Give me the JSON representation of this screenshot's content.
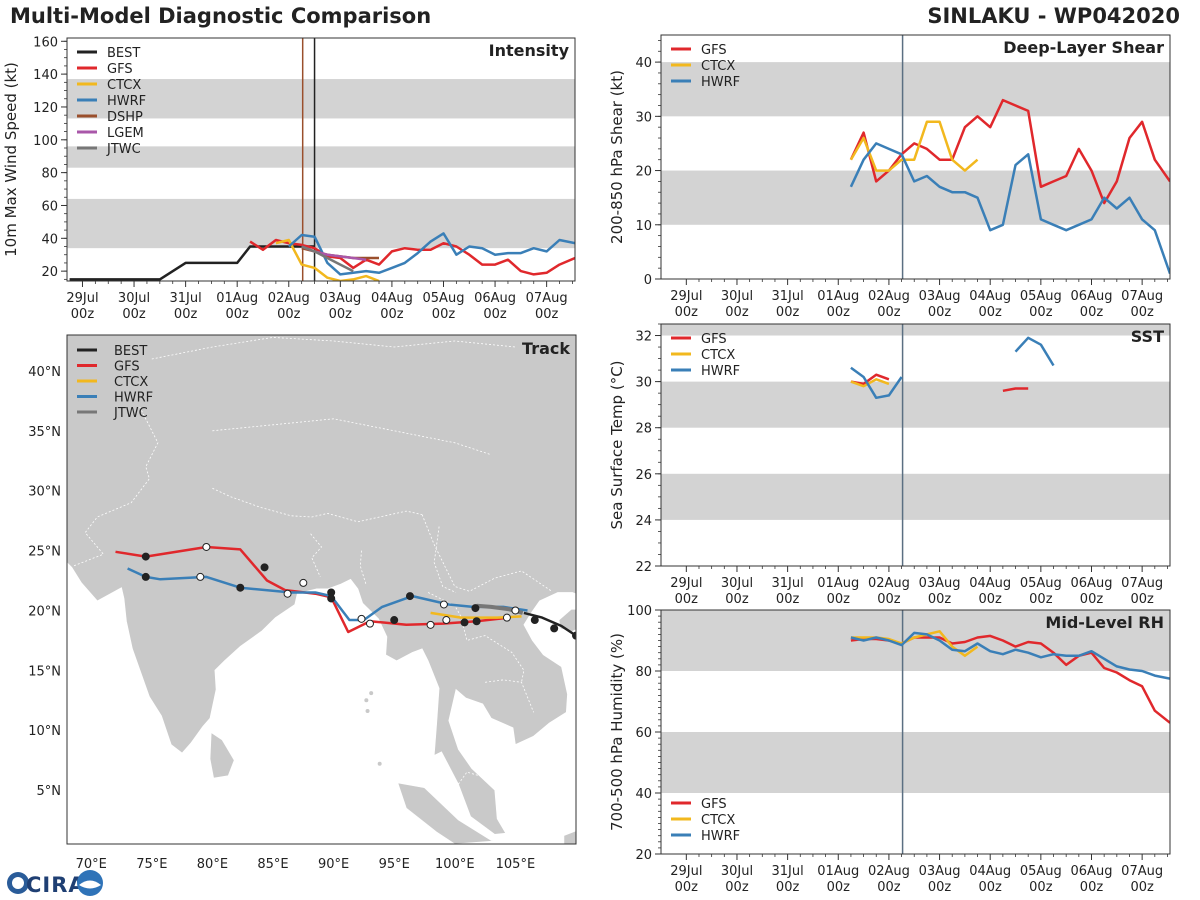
{
  "header": {
    "title": "Multi-Model Diagnostic Comparison",
    "storm": "SINLAKU - WP042020"
  },
  "logo": {
    "text": "CIRA"
  },
  "colors": {
    "BEST": "#222222",
    "GFS": "#e0282c",
    "CTCX": "#f2b81e",
    "HWRF": "#3a7fb7",
    "DSHP": "#9a4f2c",
    "LGEM": "#a957a9",
    "JTWC": "#777777",
    "band": "#d3d3d3",
    "land": "#c9c9c9",
    "vline": "#5b6f82"
  },
  "time_ticks": [
    "29Jul\n00z",
    "30Jul\n00z",
    "31Jul\n00z",
    "01Aug\n00z",
    "02Aug\n00z",
    "03Aug\n00z",
    "04Aug\n00z",
    "05Aug\n00z",
    "06Aug\n00z",
    "07Aug\n00z"
  ],
  "chart_data": [
    {
      "id": "intensity",
      "type": "line",
      "title": "Intensity",
      "ylabel": "10m Max Wind Speed (kt)",
      "xlim": [
        -0.3,
        9.55
      ],
      "ylim": [
        14,
        162
      ],
      "yticks": [
        20,
        40,
        60,
        80,
        100,
        120,
        140,
        160
      ],
      "bands": [
        [
          34,
          64
        ],
        [
          83,
          96
        ],
        [
          113,
          137
        ]
      ],
      "vlines": [
        {
          "x": 4.27,
          "color": "#9a4f2c"
        },
        {
          "x": 4.5,
          "color": "#222222"
        }
      ],
      "legend": [
        "BEST",
        "GFS",
        "CTCX",
        "HWRF",
        "DSHP",
        "LGEM",
        "JTWC"
      ],
      "series": [
        {
          "name": "BEST",
          "x": [
            -0.25,
            0,
            0.5,
            1,
            1.5,
            2,
            2.5,
            3,
            3.25,
            3.5,
            4,
            4.25,
            4.5
          ],
          "y": [
            15,
            15,
            15,
            15,
            15,
            25,
            25,
            25,
            35,
            35,
            35,
            35,
            35
          ]
        },
        {
          "name": "GFS",
          "x": [
            3.25,
            3.5,
            3.75,
            4,
            4.25,
            4.5,
            4.75,
            5,
            5.25,
            5.5,
            5.75,
            6,
            6.25,
            6.5,
            6.75,
            7,
            7.25,
            7.5,
            7.75,
            8,
            8.25,
            8.5,
            8.75,
            9,
            9.25,
            9.55
          ],
          "y": [
            38,
            33,
            39,
            37,
            36,
            34,
            29,
            28,
            22,
            27,
            24,
            32,
            34,
            33,
            33,
            37,
            35,
            30,
            24,
            24,
            27,
            20,
            18,
            19,
            24,
            28
          ]
        },
        {
          "name": "CTCX",
          "x": [
            3.75,
            4,
            4.25,
            4.5,
            4.75,
            5,
            5.25,
            5.5,
            5.75
          ],
          "y": [
            37,
            39,
            24,
            22,
            16,
            14,
            15,
            17,
            14
          ]
        },
        {
          "name": "HWRF",
          "x": [
            4,
            4.25,
            4.5,
            4.75,
            5,
            5.25,
            5.5,
            5.75,
            6,
            6.25,
            6.5,
            6.75,
            7,
            7.25,
            7.5,
            7.75,
            8,
            8.25,
            8.5,
            8.75,
            9,
            9.25,
            9.55
          ],
          "y": [
            35,
            42,
            41,
            25,
            18,
            19,
            20,
            19,
            22,
            25,
            31,
            38,
            43,
            30,
            35,
            34,
            30,
            31,
            31,
            34,
            32,
            39,
            37
          ]
        },
        {
          "name": "DSHP",
          "x": [
            4.25,
            4.5,
            4.75,
            5,
            5.25,
            5.5,
            5.75
          ],
          "y": [
            34,
            32,
            30,
            29,
            28,
            28,
            28
          ]
        },
        {
          "name": "LGEM",
          "x": [
            4.25,
            4.5,
            4.75,
            5,
            5.25,
            5.5
          ],
          "y": [
            35,
            32,
            30,
            29,
            28,
            27
          ]
        },
        {
          "name": "JTWC",
          "x": [
            4.25,
            4.5,
            4.75,
            5,
            5.25
          ],
          "y": [
            35,
            32,
            28,
            24,
            20
          ]
        }
      ]
    },
    {
      "id": "shear",
      "type": "line",
      "title": "Deep-Layer Shear",
      "ylabel": "200-850 hPa Shear (kt)",
      "xlim": [
        -0.5,
        9.55
      ],
      "ylim": [
        0,
        45
      ],
      "yticks": [
        0,
        10,
        20,
        30,
        40
      ],
      "bands": [
        [
          10,
          20
        ],
        [
          30,
          40
        ]
      ],
      "vlines": [
        {
          "x": 4.27,
          "color": "#5b6f82"
        }
      ],
      "legend": [
        "GFS",
        "CTCX",
        "HWRF"
      ],
      "series": [
        {
          "name": "GFS",
          "x": [
            3.25,
            3.5,
            3.75,
            4,
            4.25,
            4.5,
            4.75,
            5,
            5.25,
            5.5,
            5.75,
            6,
            6.25,
            6.5,
            6.75,
            7,
            7.25,
            7.5,
            7.75,
            8,
            8.25,
            8.5,
            8.75,
            9,
            9.25,
            9.55
          ],
          "y": [
            22,
            27,
            18,
            20,
            23,
            25,
            24,
            22,
            22,
            28,
            30,
            28,
            33,
            32,
            31,
            17,
            18,
            19,
            24,
            20,
            14,
            18,
            26,
            29,
            22,
            18
          ]
        },
        {
          "name": "CTCX",
          "x": [
            3.25,
            3.5,
            3.75,
            4,
            4.25,
            4.5,
            4.75,
            5,
            5.25,
            5.5,
            5.75
          ],
          "y": [
            22,
            26,
            20,
            20,
            22,
            22,
            29,
            29,
            22,
            20,
            22
          ]
        },
        {
          "name": "HWRF",
          "x": [
            3.25,
            3.5,
            3.75,
            4,
            4.25,
            4.5,
            4.75,
            5,
            5.25,
            5.5,
            5.75,
            6,
            6.25,
            6.5,
            6.75,
            7,
            7.25,
            7.5,
            7.75,
            8,
            8.25,
            8.5,
            8.75,
            9,
            9.25,
            9.55
          ],
          "y": [
            17,
            22,
            25,
            24,
            23,
            18,
            19,
            17,
            16,
            16,
            15,
            9,
            10,
            21,
            23,
            11,
            10,
            9,
            10,
            11,
            15,
            13,
            15,
            11,
            9,
            1
          ]
        }
      ]
    },
    {
      "id": "sst",
      "type": "line",
      "title": "SST",
      "ylabel": "Sea Surface Temp (°C)",
      "xlim": [
        -0.5,
        9.55
      ],
      "ylim": [
        22,
        32.5
      ],
      "yticks": [
        22,
        24,
        26,
        28,
        30,
        32
      ],
      "bands": [
        [
          24,
          26
        ],
        [
          28,
          30
        ],
        [
          32,
          32.5
        ]
      ],
      "vlines": [
        {
          "x": 4.27,
          "color": "#5b6f82"
        }
      ],
      "legend": [
        "GFS",
        "CTCX",
        "HWRF"
      ],
      "series": [
        {
          "name": "GFS",
          "segments": [
            {
              "x": [
                3.25,
                3.5,
                3.75,
                4
              ],
              "y": [
                30,
                29.9,
                30.3,
                30.1
              ]
            },
            {
              "x": [
                6.25,
                6.5,
                6.75
              ],
              "y": [
                29.6,
                29.7,
                29.7
              ]
            }
          ]
        },
        {
          "name": "CTCX",
          "segments": [
            {
              "x": [
                3.25,
                3.5,
                3.75,
                4
              ],
              "y": [
                30,
                29.8,
                30.1,
                29.9
              ]
            }
          ]
        },
        {
          "name": "HWRF",
          "segments": [
            {
              "x": [
                3.25,
                3.5,
                3.75,
                4,
                4.25
              ],
              "y": [
                30.6,
                30.2,
                29.3,
                29.4,
                30.2
              ]
            },
            {
              "x": [
                6.5,
                6.75,
                7,
                7.25
              ],
              "y": [
                31.3,
                31.9,
                31.6,
                30.7
              ]
            }
          ]
        }
      ]
    },
    {
      "id": "rh",
      "type": "line",
      "title": "Mid-Level RH",
      "ylabel": "700-500 hPa Humidity (%)",
      "xlim": [
        -0.5,
        9.55
      ],
      "ylim": [
        20,
        100
      ],
      "yticks": [
        20,
        40,
        60,
        80,
        100
      ],
      "bands": [
        [
          40,
          60
        ],
        [
          80,
          100
        ]
      ],
      "vlines": [
        {
          "x": 4.27,
          "color": "#5b6f82"
        }
      ],
      "legend": [
        "GFS",
        "CTCX",
        "HWRF"
      ],
      "series": [
        {
          "name": "GFS",
          "x": [
            3.25,
            3.5,
            3.75,
            4,
            4.25,
            4.5,
            4.75,
            5,
            5.25,
            5.5,
            5.75,
            6,
            6.25,
            6.5,
            6.75,
            7,
            7.25,
            7.5,
            7.75,
            8,
            8.25,
            8.5,
            8.75,
            9,
            9.25,
            9.55
          ],
          "y": [
            90,
            90.5,
            90.5,
            90,
            89,
            91,
            91,
            91,
            89,
            89.5,
            91,
            91.5,
            90,
            88,
            89.5,
            89,
            86,
            82,
            85,
            86,
            81,
            79.5,
            77,
            75,
            67,
            63
          ]
        },
        {
          "name": "CTCX",
          "x": [
            3.25,
            3.5,
            3.75,
            4,
            4.25,
            4.5,
            4.75,
            5,
            5.25,
            5.5,
            5.75
          ],
          "y": [
            91,
            91,
            91,
            90.5,
            89,
            91,
            92,
            93,
            88,
            85,
            88
          ]
        },
        {
          "name": "HWRF",
          "x": [
            3.25,
            3.5,
            3.75,
            4,
            4.25,
            4.5,
            4.75,
            5,
            5.25,
            5.5,
            5.75,
            6,
            6.25,
            6.5,
            6.75,
            7,
            7.25,
            7.5,
            7.75,
            8,
            8.25,
            8.5,
            8.75,
            9,
            9.25,
            9.55
          ],
          "y": [
            91,
            90,
            91,
            90,
            88.5,
            92.5,
            92,
            90,
            87,
            86.5,
            89,
            86.5,
            85.5,
            87,
            86,
            84.5,
            85.5,
            85,
            85,
            86.5,
            84,
            81.5,
            80.5,
            80,
            78.5,
            77.5
          ]
        }
      ]
    },
    {
      "id": "track",
      "type": "line",
      "title": "Track",
      "xlabel_ticks": [
        "70°E",
        "75°E",
        "80°E",
        "85°E",
        "90°E",
        "95°E",
        "100°E",
        "105°E"
      ],
      "ylabel_ticks": [
        "5°N",
        "10°N",
        "15°N",
        "20°N",
        "25°N",
        "30°N",
        "35°N",
        "40°N"
      ],
      "xlim": [
        68,
        110
      ],
      "ylim": [
        0.5,
        43
      ],
      "legend": [
        "BEST",
        "GFS",
        "CTCX",
        "HWRF",
        "JTWC"
      ],
      "series": [
        {
          "name": "BEST",
          "lon": [
            110,
            108.8,
            107.2,
            105.7
          ],
          "lat": [
            17.9,
            18.7,
            19.4,
            19.8
          ]
        },
        {
          "name": "GFS",
          "lon": [
            104.5,
            101.8,
            99,
            96,
            93,
            91.2,
            89.8,
            88.5,
            86,
            84.5,
            82.3,
            79.5,
            74.5,
            72
          ],
          "lat": [
            19.4,
            19.1,
            18.9,
            18.8,
            19.1,
            18.2,
            21.1,
            21.4,
            21.7,
            22.5,
            25.1,
            25.3,
            24.5,
            24.9
          ]
        },
        {
          "name": "CTCX",
          "lon": [
            105.5,
            103.5,
            100.5,
            98
          ],
          "lat": [
            19.5,
            19.4,
            19.4,
            19.8
          ]
        },
        {
          "name": "HWRF",
          "lon": [
            106,
            104,
            101.5,
            99.5,
            96.5,
            94,
            92.5,
            91.3,
            89.8,
            88.5,
            86.5,
            82.3,
            79.5,
            75.7,
            74.5,
            73
          ],
          "lat": [
            20,
            20.3,
            20.3,
            20.5,
            21.2,
            20.3,
            19.2,
            19.2,
            21.2,
            21.5,
            21.5,
            21.9,
            22.8,
            22.6,
            22.8,
            23.5
          ]
        },
        {
          "name": "JTWC",
          "lon": [
            105.6,
            104.5,
            103,
            101.8
          ],
          "lat": [
            19.8,
            20.1,
            20.3,
            20.4
          ]
        }
      ],
      "markers": [
        {
          "series": "BEST",
          "lon": [
            110,
            108.2,
            106.6
          ],
          "lat": [
            17.9,
            18.5,
            19.2
          ],
          "fill": "#222222"
        },
        {
          "series": "GFS",
          "lon": [
            101.8,
            100.8,
            95,
            89.8,
            84.3,
            74.5
          ],
          "lat": [
            19.1,
            19,
            19.2,
            21.5,
            23.6,
            24.5
          ],
          "fill": "#222222"
        },
        {
          "series": "GFS",
          "lon": [
            98,
            93,
            87.5,
            79.5
          ],
          "lat": [
            18.8,
            18.9,
            22.3,
            25.3
          ],
          "fill": "#ffffff"
        },
        {
          "series": "HWRF",
          "lon": [
            101.7,
            96.3,
            89.8,
            82.3,
            74.5
          ],
          "lat": [
            20.2,
            21.2,
            21,
            21.9,
            22.8
          ],
          "fill": "#222222"
        },
        {
          "series": "HWRF",
          "lon": [
            105,
            99.1,
            92.3,
            86.2,
            79
          ],
          "lat": [
            20,
            20.5,
            19.3,
            21.4,
            22.8
          ],
          "fill": "#ffffff"
        },
        {
          "series": "CTCX",
          "lon": [
            104.3,
            99.3
          ],
          "lat": [
            19.4,
            19.2
          ],
          "fill": "#ffffff"
        }
      ]
    }
  ]
}
